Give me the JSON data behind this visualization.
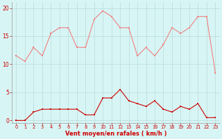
{
  "x": [
    0,
    1,
    2,
    3,
    4,
    5,
    6,
    7,
    8,
    9,
    10,
    11,
    12,
    13,
    14,
    15,
    16,
    17,
    18,
    19,
    20,
    21,
    22,
    23
  ],
  "rafales": [
    11.5,
    10.5,
    13.0,
    11.5,
    15.5,
    16.5,
    16.5,
    13.0,
    13.0,
    18.0,
    19.5,
    18.5,
    16.5,
    16.5,
    11.5,
    13.0,
    11.5,
    13.5,
    16.5,
    15.5,
    16.5,
    18.5,
    18.5,
    8.5
  ],
  "moyen": [
    0.0,
    0.0,
    1.5,
    2.0,
    2.0,
    2.0,
    2.0,
    2.0,
    1.0,
    1.0,
    4.0,
    4.0,
    5.5,
    3.5,
    3.0,
    2.5,
    3.5,
    2.0,
    1.5,
    2.5,
    2.0,
    3.0,
    0.5,
    0.5
  ],
  "color_rafales": "#f08080",
  "color_moyen": "#cc0000",
  "bg_color": "#d8f5f5",
  "grid_color": "#b8dada",
  "xlabel": "Vent moyen/en rafales ( km/h )",
  "yticks": [
    0,
    5,
    10,
    15,
    20
  ],
  "xticks": [
    0,
    1,
    2,
    3,
    4,
    5,
    6,
    7,
    8,
    9,
    10,
    11,
    12,
    13,
    14,
    15,
    16,
    17,
    18,
    19,
    20,
    21,
    22,
    23
  ],
  "ylim": [
    -0.5,
    21.0
  ],
  "xlim": [
    -0.5,
    23.5
  ],
  "tick_color": "#cc0000",
  "xlabel_fontsize": 6.0,
  "ytick_fontsize": 5.5,
  "xtick_fontsize": 4.8,
  "marker_size": 2.0,
  "line_width": 0.8
}
